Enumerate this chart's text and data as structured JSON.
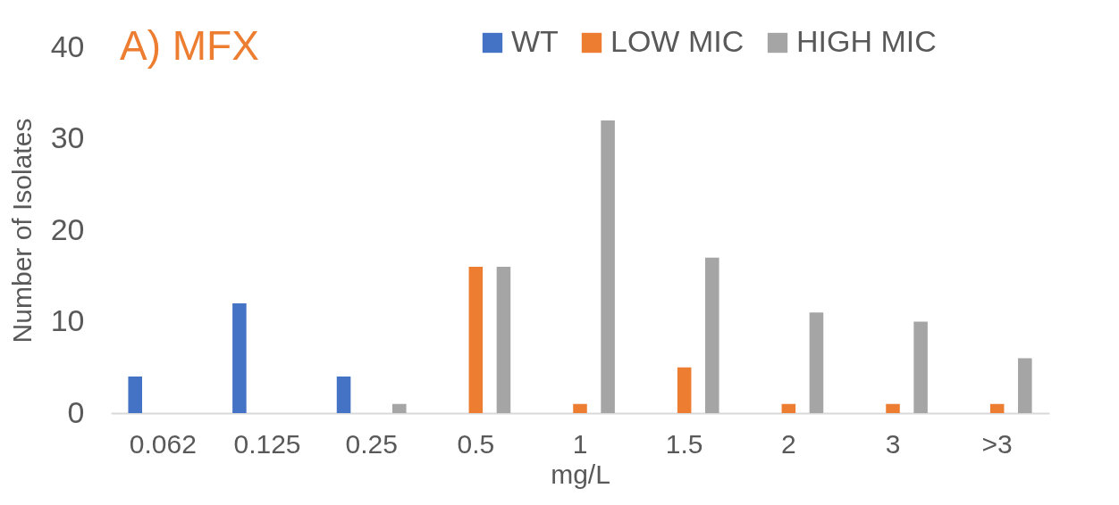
{
  "chart_data": {
    "type": "bar",
    "title": "A) MFX",
    "xlabel": "mg/L",
    "ylabel": "Number of Isolates",
    "categories": [
      "0.062",
      "0.125",
      "0.25",
      "0.5",
      "1",
      "1.5",
      "2",
      "3",
      ">3"
    ],
    "series": [
      {
        "name": "WT",
        "color": "#4472c4",
        "values": [
          4,
          12,
          4,
          null,
          null,
          null,
          null,
          null,
          null
        ]
      },
      {
        "name": "LOW MIC",
        "color": "#ed7d31",
        "values": [
          null,
          null,
          null,
          16,
          1,
          5,
          1,
          1,
          1
        ]
      },
      {
        "name": "HIGH MIC",
        "color": "#a5a5a5",
        "values": [
          null,
          null,
          1,
          16,
          32,
          17,
          11,
          10,
          6
        ]
      }
    ],
    "ylim": [
      0,
      40
    ],
    "yticks": [
      0,
      10,
      20,
      30,
      40
    ],
    "grid": false,
    "legend": "top right"
  }
}
